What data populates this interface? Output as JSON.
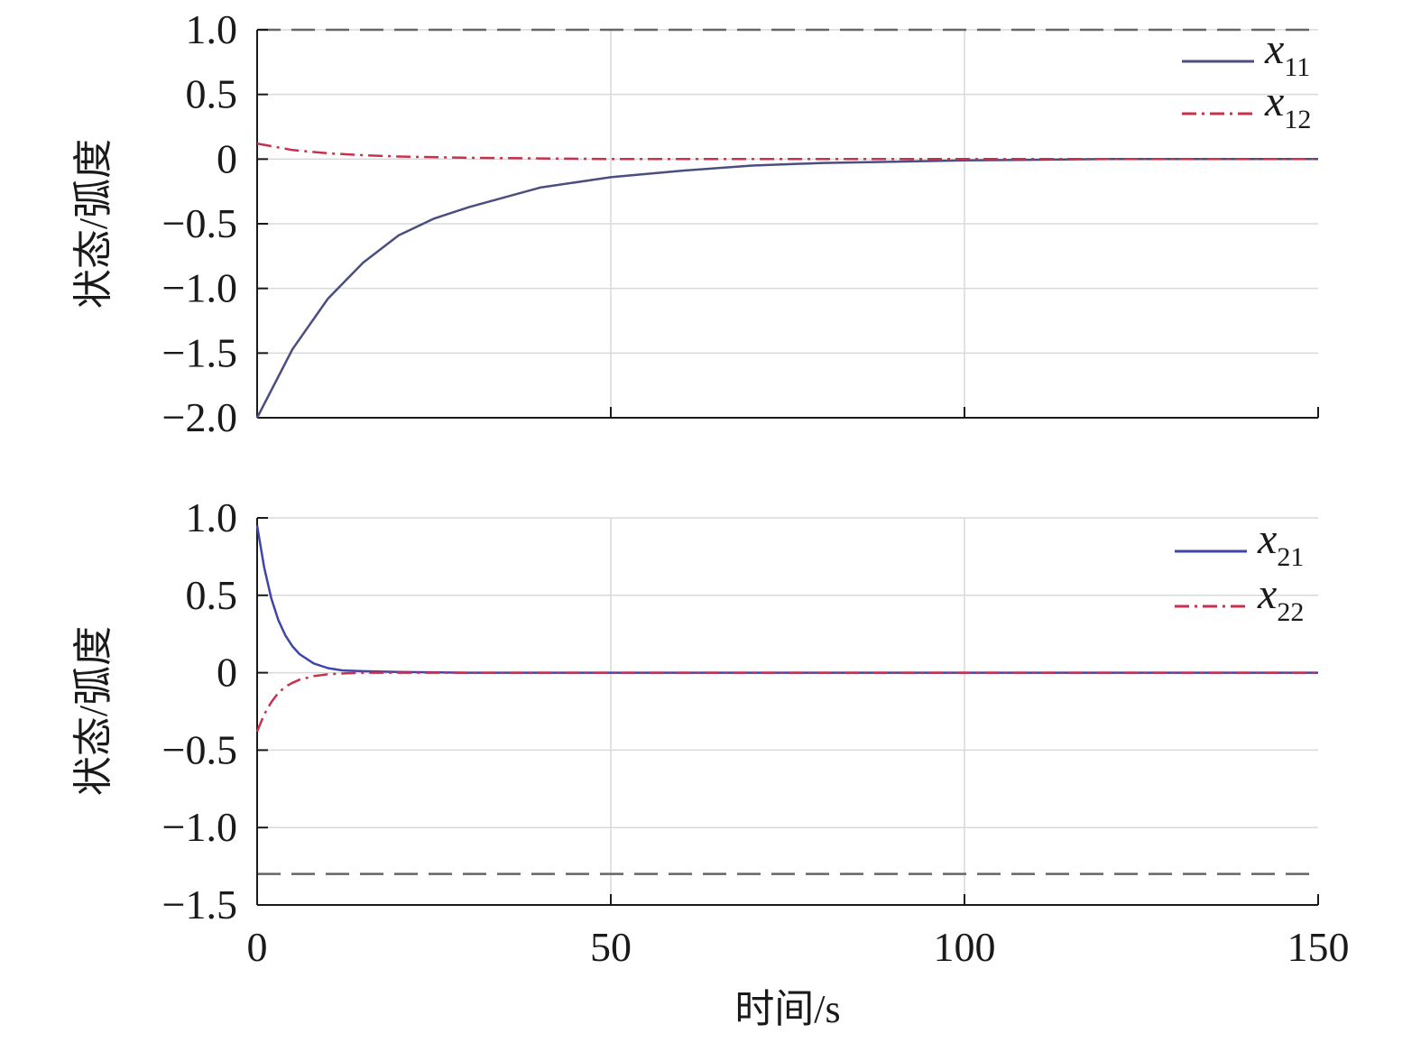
{
  "colors": {
    "x11": "#4a4f80",
    "x12": "#c8314e",
    "x21": "#3f46a8",
    "x22": "#c8314e",
    "axis": "#1a1a1a",
    "grid": "#d9d9d9",
    "bound": "#666666"
  },
  "chart_data": [
    {
      "type": "line",
      "xlabel": "",
      "ylabel": "状态/弧度",
      "xlim": [
        0,
        150
      ],
      "ylim": [
        -2.0,
        1.0
      ],
      "x_ticks": [
        0,
        50,
        100,
        150
      ],
      "x_tick_labels": [
        "",
        "",
        "",
        ""
      ],
      "y_ticks": [
        1.0,
        0.5,
        0,
        -0.5,
        -1.0,
        -1.5,
        -2.0
      ],
      "y_tick_labels": [
        "1.0",
        "0.5",
        "0",
        "−0.5",
        "−1.0",
        "−1.5",
        "−2.0"
      ],
      "grid": true,
      "legend_position": "top-right",
      "bound_lines": [
        1.0
      ],
      "series": [
        {
          "name": "x11",
          "color": "#4a4f80",
          "dash": "solid",
          "x": [
            0,
            5,
            10,
            15,
            20,
            25,
            30,
            40,
            50,
            60,
            70,
            80,
            90,
            100,
            120,
            150
          ],
          "y": [
            -2.0,
            -1.47,
            -1.08,
            -0.8,
            -0.59,
            -0.46,
            -0.37,
            -0.22,
            -0.14,
            -0.09,
            -0.05,
            -0.03,
            -0.02,
            -0.01,
            0.0,
            0.0
          ]
        },
        {
          "name": "x12",
          "color": "#c8314e",
          "dash": "dashdot",
          "x": [
            0,
            5,
            10,
            15,
            20,
            30,
            40,
            50,
            60,
            80,
            100,
            150
          ],
          "y": [
            0.12,
            0.07,
            0.045,
            0.03,
            0.02,
            0.01,
            0.005,
            0.0,
            0.0,
            0.0,
            0.0,
            0.0
          ]
        }
      ]
    },
    {
      "type": "line",
      "xlabel": "时间/s",
      "ylabel": "状态/弧度",
      "xlim": [
        0,
        150
      ],
      "ylim": [
        -1.5,
        1.0
      ],
      "x_ticks": [
        0,
        50,
        100,
        150
      ],
      "x_tick_labels": [
        "0",
        "50",
        "100",
        "150"
      ],
      "y_ticks": [
        1.0,
        0.5,
        0,
        -0.5,
        -1.0,
        -1.5
      ],
      "y_tick_labels": [
        "1.0",
        "0.5",
        "0",
        "−0.5",
        "−1.0",
        "−1.5"
      ],
      "grid": true,
      "legend_position": "top-right",
      "bound_lines": [
        -1.3
      ],
      "series": [
        {
          "name": "x21",
          "color": "#3f46a8",
          "dash": "solid",
          "x": [
            0,
            1,
            2,
            3,
            4,
            5,
            6,
            8,
            10,
            12,
            15,
            20,
            30,
            50,
            100,
            150
          ],
          "y": [
            0.95,
            0.68,
            0.48,
            0.34,
            0.24,
            0.17,
            0.12,
            0.06,
            0.03,
            0.015,
            0.01,
            0.005,
            0.0,
            0.0,
            0.0,
            0.0
          ]
        },
        {
          "name": "x22",
          "color": "#c8314e",
          "dash": "dashdot",
          "x": [
            0,
            1,
            2,
            3,
            4,
            5,
            6,
            8,
            10,
            12,
            15,
            20,
            30,
            50,
            100,
            150
          ],
          "y": [
            -0.38,
            -0.27,
            -0.19,
            -0.13,
            -0.09,
            -0.065,
            -0.045,
            -0.022,
            -0.01,
            -0.005,
            0.0,
            0.0,
            0.0,
            0.0,
            0.0,
            0.0
          ]
        }
      ]
    }
  ]
}
